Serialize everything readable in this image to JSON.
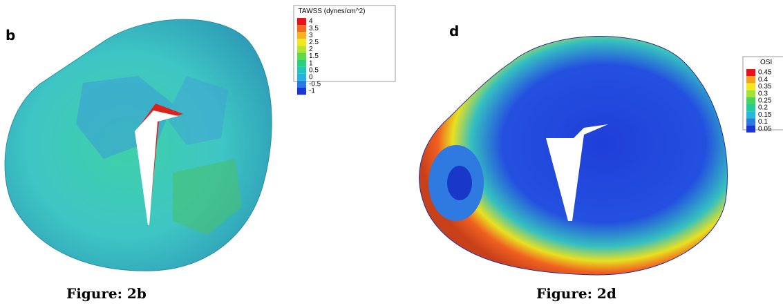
{
  "panels": [
    {
      "label": "b",
      "caption": "Figure: 2b",
      "legend": {
        "title": "TAWSS (dynes/cm^2)",
        "entries": [
          {
            "label": "4",
            "color": "#e8101a"
          },
          {
            "label": "3.5",
            "color": "#f5661e"
          },
          {
            "label": "3",
            "color": "#f9b21f"
          },
          {
            "label": "2.5",
            "color": "#f2e81e"
          },
          {
            "label": "2",
            "color": "#b6e530"
          },
          {
            "label": "1.5",
            "color": "#5ed94a"
          },
          {
            "label": "1",
            "color": "#27cf7e"
          },
          {
            "label": "0.5",
            "color": "#20c6b8"
          },
          {
            "label": "0",
            "color": "#27b3e0"
          },
          {
            "label": "-0.5",
            "color": "#2a7ae3"
          },
          {
            "label": "-1",
            "color": "#1a35d8"
          }
        ]
      }
    },
    {
      "label": "d",
      "caption": "Figure: 2d",
      "legend": {
        "title": "OSI",
        "entries": [
          {
            "label": "0.45",
            "color": "#e8101a"
          },
          {
            "label": "0.4",
            "color": "#f9a01f"
          },
          {
            "label": "0.35",
            "color": "#f2e81e"
          },
          {
            "label": "0.3",
            "color": "#a5e236"
          },
          {
            "label": "0.25",
            "color": "#45d55a"
          },
          {
            "label": "0.2",
            "color": "#22cb9c"
          },
          {
            "label": "0.15",
            "color": "#25b7dc"
          },
          {
            "label": "0.1",
            "color": "#2a7ae3"
          },
          {
            "label": "0.05",
            "color": "#1a35d8"
          }
        ]
      }
    }
  ]
}
